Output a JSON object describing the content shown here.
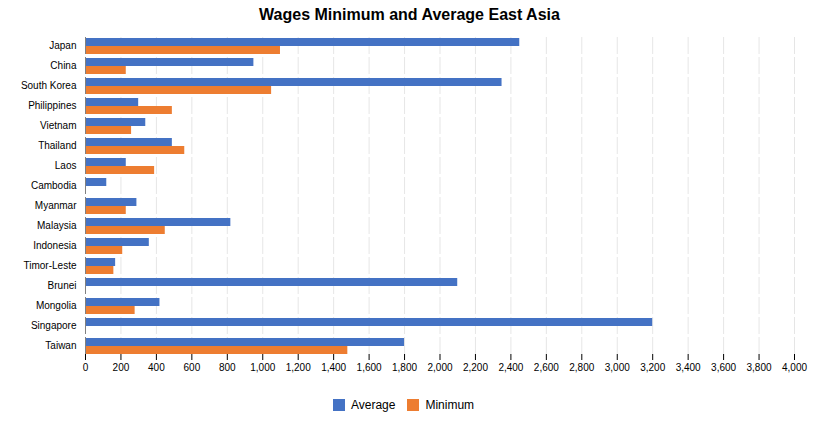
{
  "chart_data": {
    "type": "bar",
    "orientation": "horizontal",
    "title": "Wages Minimum and Average East Asia",
    "categories": [
      "Japan",
      "China",
      "South Korea",
      "Philippines",
      "Vietnam",
      "Thailand",
      "Laos",
      "Cambodia",
      "Myanmar",
      "Malaysia",
      "Indonesia",
      "Timor-Leste",
      "Brunei",
      "Mongolia",
      "Singapore",
      "Taiwan"
    ],
    "series": [
      {
        "name": "Average",
        "color": "#4472C4",
        "values": [
          2450,
          950,
          2350,
          300,
          340,
          490,
          230,
          120,
          290,
          820,
          360,
          170,
          2100,
          420,
          3200,
          1800
        ]
      },
      {
        "name": "Minimum",
        "color": "#ED7D31",
        "values": [
          1100,
          230,
          1050,
          490,
          260,
          560,
          390,
          0,
          230,
          450,
          210,
          160,
          0,
          280,
          0,
          1480
        ]
      }
    ],
    "xlim": [
      0,
      4000
    ],
    "xticks": [
      0,
      200,
      400,
      600,
      800,
      {
        "value": 1000,
        "label": "1,000"
      },
      {
        "value": 1200,
        "label": "1,200"
      },
      {
        "value": 1400,
        "label": "1,400"
      },
      {
        "value": 1600,
        "label": "1,600"
      },
      {
        "value": 1800,
        "label": "1,800"
      },
      {
        "value": 2000,
        "label": "2,000"
      },
      {
        "value": 2200,
        "label": "2,200"
      },
      {
        "value": 2400,
        "label": "2,400"
      },
      {
        "value": 2600,
        "label": "2,600"
      },
      {
        "value": 2800,
        "label": "2,800"
      },
      {
        "value": 3000,
        "label": "3,000"
      },
      {
        "value": 3200,
        "label": "3,200"
      },
      {
        "value": 3400,
        "label": "3,400"
      },
      {
        "value": 3600,
        "label": "3,600"
      },
      {
        "value": 3800,
        "label": "3,800"
      },
      {
        "value": 4000,
        "label": "4,000"
      }
    ],
    "grid": true,
    "legend": "bottom"
  }
}
